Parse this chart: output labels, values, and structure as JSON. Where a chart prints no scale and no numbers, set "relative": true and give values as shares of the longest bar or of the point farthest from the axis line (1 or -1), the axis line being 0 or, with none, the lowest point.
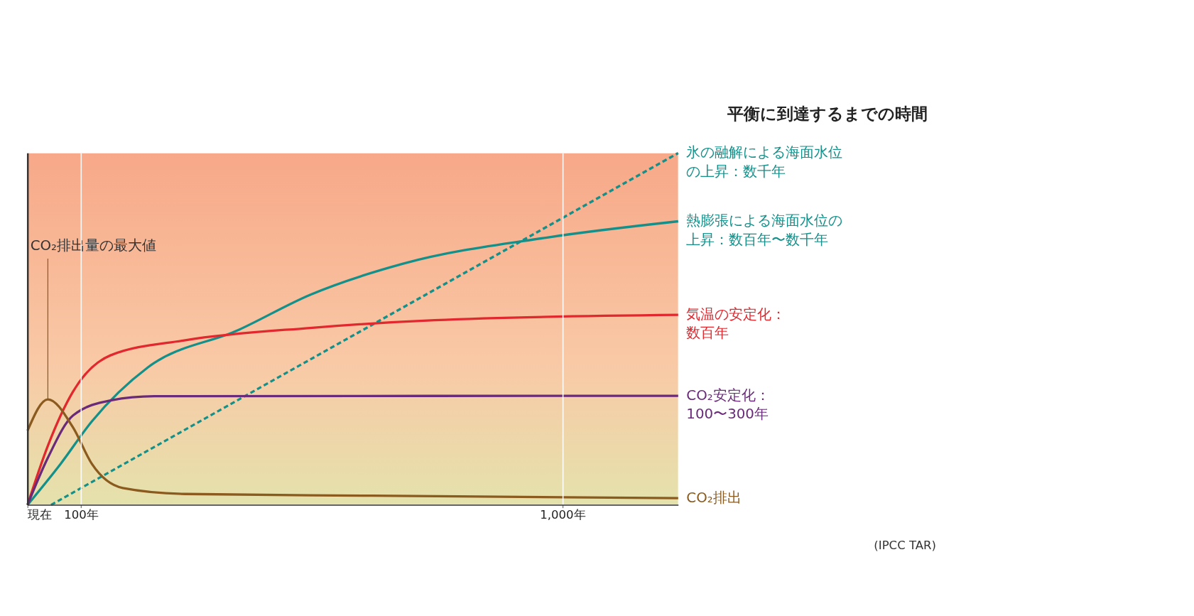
{
  "chart_data": {
    "type": "line",
    "title": "平衡に到達するまでの時間",
    "relative": true,
    "xlim": [
      0,
      1216
    ],
    "xticks": [
      {
        "value": 0,
        "label": "現在"
      },
      {
        "value": 100,
        "label": "100年"
      },
      {
        "value": 1000,
        "label": "1,000年"
      }
    ],
    "grid": "x",
    "marker": "none",
    "series": [
      {
        "name": "氷の融解による海面水位の上昇：数千年",
        "color": "#14908a",
        "line_style": "dashed",
        "x": [
          44,
          1216
        ],
        "values": [
          0,
          1
        ]
      },
      {
        "name": "熱膨張による海面水位の上昇：数百年〜数千年",
        "color": "#14908a",
        "line_style": "solid",
        "x": [
          0,
          62,
          120,
          225,
          394,
          528,
          703,
          971,
          1216
        ],
        "values": [
          0,
          0.117,
          0.237,
          0.391,
          0.497,
          0.597,
          0.686,
          0.76,
          0.806
        ]
      },
      {
        "name": "気温の安定化：数百年",
        "color": "#e0282e",
        "line_style": "solid",
        "x": [
          0,
          38,
          85,
          155,
          295,
          528,
          761,
          1216
        ],
        "values": [
          0,
          0.168,
          0.322,
          0.425,
          0.468,
          0.503,
          0.525,
          0.54
        ]
      },
      {
        "name": "CO₂安定化：100〜300年",
        "color": "#6a2a7a",
        "line_style": "solid",
        "x": [
          0,
          38,
          85,
          155,
          237,
          1216
        ],
        "values": [
          0,
          0.134,
          0.254,
          0.297,
          0.309,
          0.31
        ]
      },
      {
        "name": "CO₂排出",
        "color": "#8a5a1e",
        "line_style": "solid",
        "x": [
          0,
          38,
          85,
          120,
          178,
          295,
          645,
          1216
        ],
        "values": [
          0.211,
          0.3,
          0.22,
          0.117,
          0.048,
          0.031,
          0.026,
          0.019
        ]
      }
    ],
    "annotations": [
      {
        "text": "CO₂排出量の最大値",
        "x": 38,
        "y": 0.3
      },
      "(IPCC TAR)"
    ]
  }
}
